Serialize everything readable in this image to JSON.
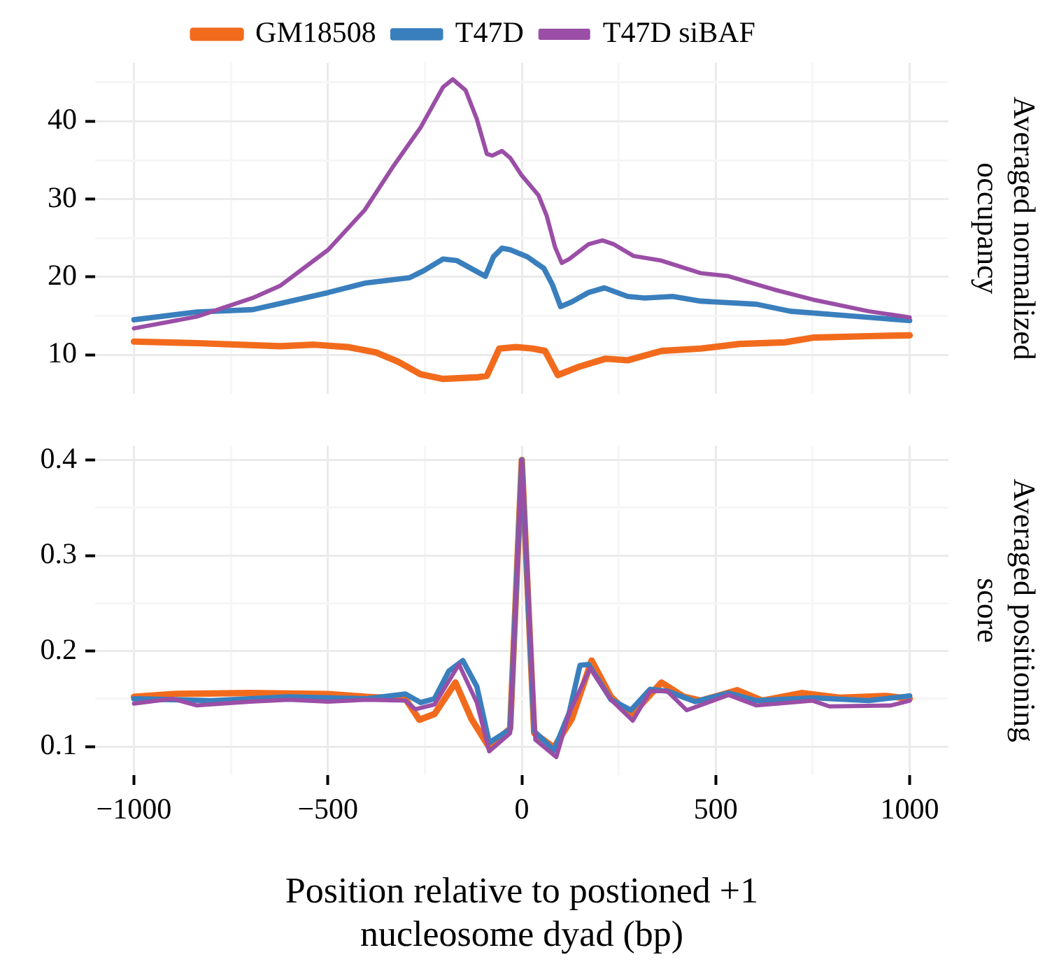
{
  "chart_data": [
    {
      "type": "line",
      "ylabel": "Averaged normalized occupancy",
      "legend": "top",
      "grid": true,
      "tick_labels": "y",
      "marker": "none",
      "line_style": "solid",
      "xlim": [
        -1100,
        1100
      ],
      "xticks": [
        -1000,
        {
          "value": -750,
          "label": null
        },
        -500,
        {
          "value": -250,
          "label": null
        },
        0,
        {
          "value": 250,
          "label": null
        },
        500,
        {
          "value": 750,
          "label": null
        },
        1000
      ],
      "ylim": [
        5,
        47.5
      ],
      "yticks": [
        10,
        {
          "value": 15,
          "label": null
        },
        20,
        {
          "value": 25,
          "label": null
        },
        30,
        {
          "value": 35,
          "label": null
        },
        40,
        {
          "value": 45,
          "label": null
        }
      ],
      "series": [
        {
          "name": "GM18508",
          "color": "#f26b1d",
          "x": [
            -1000,
            -838,
            -622,
            -535,
            -449,
            -376,
            -318,
            -261,
            -203,
            -116,
            -90,
            -58,
            -15,
            28,
            60,
            93,
            144,
            216,
            273,
            360,
            461,
            562,
            678,
            750,
            894,
            1000
          ],
          "values": [
            11.7,
            11.5,
            11.1,
            11.3,
            11.0,
            10.3,
            9.1,
            7.5,
            6.9,
            7.1,
            7.3,
            10.8,
            11.0,
            10.8,
            10.5,
            7.4,
            8.4,
            9.5,
            9.3,
            10.5,
            10.8,
            11.4,
            11.6,
            12.2,
            12.4,
            12.5
          ]
        },
        {
          "name": "T47D",
          "color": "#3a7fbd",
          "x": [
            -1000,
            -838,
            -694,
            -622,
            -499,
            -405,
            -290,
            -253,
            -203,
            -167,
            -131,
            -94,
            -73,
            -51,
            -30,
            14,
            57,
            79,
            100,
            129,
            172,
            213,
            273,
            317,
            389,
            461,
            605,
            692,
            822,
            1000
          ],
          "values": [
            14.5,
            15.5,
            15.8,
            16.6,
            18.0,
            19.2,
            19.9,
            20.8,
            22.3,
            22.1,
            21.1,
            20.1,
            22.6,
            23.7,
            23.5,
            22.6,
            21.1,
            19.0,
            16.2,
            16.8,
            18.0,
            18.6,
            17.5,
            17.3,
            17.5,
            16.9,
            16.5,
            15.6,
            15.1,
            14.4
          ]
        },
        {
          "name": "T47D siBAF",
          "color": "#9a4ea6",
          "x": [
            -1000,
            -838,
            -694,
            -622,
            -499,
            -405,
            -333,
            -261,
            -203,
            -178,
            -145,
            -116,
            -90,
            -76,
            -51,
            -30,
            -1,
            43,
            64,
            86,
            103,
            122,
            172,
            208,
            237,
            288,
            360,
            461,
            533,
            649,
            750,
            894,
            1000
          ],
          "values": [
            13.4,
            14.9,
            17.3,
            18.9,
            23.5,
            28.6,
            34.1,
            39.2,
            44.4,
            45.4,
            44.0,
            40.3,
            35.8,
            35.6,
            36.2,
            35.3,
            33.1,
            30.5,
            27.9,
            23.8,
            21.8,
            22.3,
            24.2,
            24.7,
            24.2,
            22.7,
            22.1,
            20.5,
            20.1,
            18.4,
            17.1,
            15.6,
            14.8
          ]
        }
      ]
    },
    {
      "type": "line",
      "ylabel": "Averaged positioning score",
      "xlabel": "Position relative to postioned +1 nucleosome dyad (bp)",
      "legend": false,
      "grid": true,
      "marker": "none",
      "line_style": "solid",
      "xlim": [
        -1100,
        1100
      ],
      "xticks": [
        -1000,
        {
          "value": -750,
          "label": null
        },
        -500,
        {
          "value": -250,
          "label": null
        },
        0,
        {
          "value": 250,
          "label": null
        },
        500,
        {
          "value": 750,
          "label": null
        },
        1000
      ],
      "ylim": [
        0.07,
        0.415
      ],
      "yticks": [
        0.1,
        {
          "value": 0.15,
          "label": null
        },
        0.2,
        {
          "value": 0.25,
          "label": null
        },
        0.3,
        {
          "value": 0.35,
          "label": null
        },
        0.4
      ],
      "series": [
        {
          "color": "#f26b1d",
          "x": [
            -1000,
            -900,
            -700,
            -500,
            -400,
            -300,
            -264,
            -225,
            -171,
            -130,
            -84,
            -30,
            0,
            32,
            83,
            129,
            180,
            230,
            281,
            360,
            418,
            461,
            555,
            620,
            721,
            822,
            938,
            1000
          ],
          "values": [
            0.152,
            0.155,
            0.156,
            0.155,
            0.152,
            0.15,
            0.128,
            0.134,
            0.167,
            0.129,
            0.099,
            0.119,
            0.4,
            0.114,
            0.099,
            0.129,
            0.19,
            0.152,
            0.132,
            0.167,
            0.152,
            0.148,
            0.159,
            0.148,
            0.156,
            0.151,
            0.153,
            0.15
          ]
        },
        {
          "color": "#3a7fbd",
          "x": [
            -1000,
            -800,
            -600,
            -400,
            -300,
            -261,
            -225,
            -188,
            -152,
            -116,
            -84,
            -30,
            0,
            32,
            83,
            122,
            150,
            172,
            230,
            281,
            331,
            375,
            447,
            533,
            605,
            750,
            894,
            1000
          ],
          "values": [
            0.15,
            0.148,
            0.152,
            0.15,
            0.155,
            0.146,
            0.15,
            0.179,
            0.19,
            0.163,
            0.104,
            0.118,
            0.4,
            0.116,
            0.096,
            0.135,
            0.185,
            0.186,
            0.149,
            0.138,
            0.16,
            0.158,
            0.147,
            0.156,
            0.148,
            0.151,
            0.148,
            0.153
          ]
        },
        {
          "color": "#9a4ea6",
          "x": [
            -1000,
            -900,
            -838,
            -700,
            -600,
            -500,
            -400,
            -300,
            -275,
            -225,
            -162,
            -116,
            -84,
            -30,
            0,
            35,
            89,
            122,
            176,
            230,
            286,
            331,
            375,
            425,
            533,
            605,
            750,
            793,
            952,
            1000
          ],
          "values": [
            0.145,
            0.15,
            0.143,
            0.147,
            0.149,
            0.147,
            0.149,
            0.148,
            0.139,
            0.144,
            0.186,
            0.146,
            0.095,
            0.114,
            0.4,
            0.107,
            0.089,
            0.135,
            0.182,
            0.149,
            0.127,
            0.158,
            0.158,
            0.138,
            0.154,
            0.143,
            0.148,
            0.142,
            0.143,
            0.148
          ]
        }
      ]
    }
  ]
}
